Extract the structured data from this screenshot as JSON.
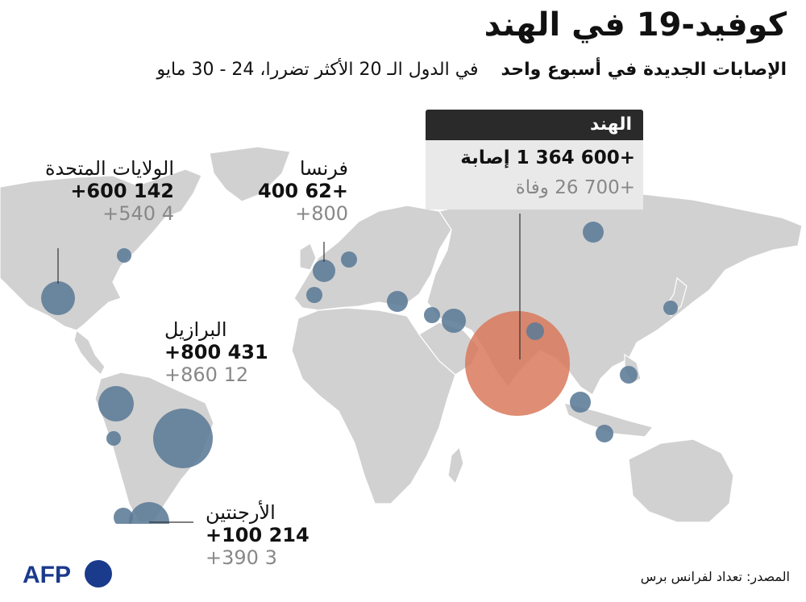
{
  "title": "كوفيد-19 في الهند",
  "subtitle": {
    "bold_part": "الإصابات الجديدة في أسبوع واحد",
    "rest": "في الدول الـ 20 الأكثر تضررا، 24 - 30 مايو"
  },
  "countries": {
    "usa": {
      "name": "الولايات المتحدة",
      "cases": "142 600+",
      "deaths": "4 540+"
    },
    "france": {
      "name": "فرنسا",
      "cases": "+62 400",
      "deaths": "800+"
    },
    "brazil": {
      "name": "البرازيل",
      "cases": "431 800+",
      "deaths": "12 860+"
    },
    "argentina": {
      "name": "الأرجنتين",
      "cases": "214 100+",
      "deaths": "3 390+"
    },
    "india": {
      "name": "الهند",
      "cases": "+600 364 1 إصابة",
      "deaths": "+700 26 وفاة"
    }
  },
  "source": "المصدر: تعداد لفرانس برس",
  "logo": {
    "text": "AFP",
    "icon": "afp-logo-icon"
  },
  "colors": {
    "land": "#d1d1d1",
    "bubble": "#5b7a96",
    "india_bubble": "#d9795c",
    "label_box_header": "#2a2a2a",
    "label_box_body": "#e9e9e9",
    "logo_blue": "#1a3a8c"
  }
}
